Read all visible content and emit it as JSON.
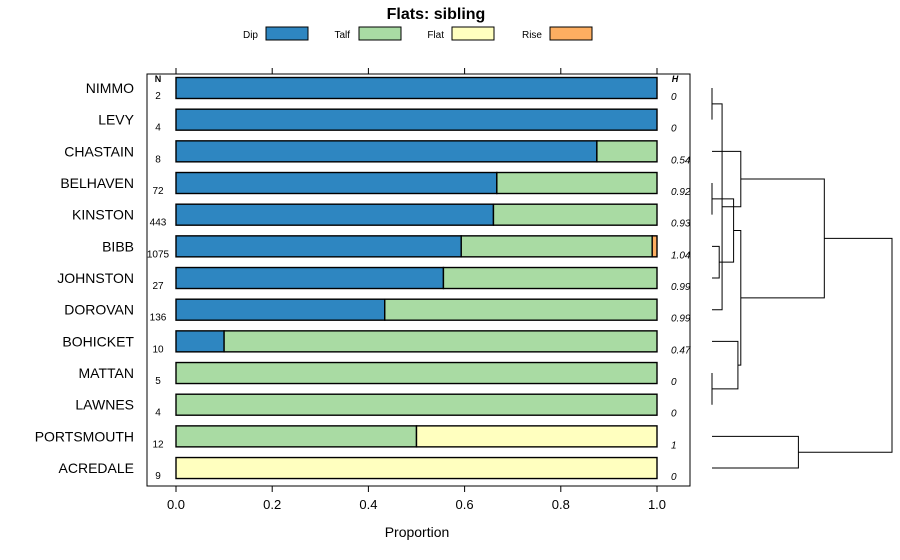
{
  "chart_data": {
    "type": "bar",
    "stacked": true,
    "orientation": "horizontal",
    "title": "Flats: sibling",
    "xlabel": "Proportion",
    "xlim": [
      0,
      1
    ],
    "x_ticks": [
      "0.0",
      "0.2",
      "0.4",
      "0.6",
      "0.8",
      "1.0"
    ],
    "n_header": "N",
    "h_header": "H",
    "legend": [
      {
        "name": "Dip",
        "color": "#2e86c1"
      },
      {
        "name": "Talf",
        "color": "#a9dba3"
      },
      {
        "name": "Flat",
        "color": "#ffffbf"
      },
      {
        "name": "Rise",
        "color": "#fdae61"
      }
    ],
    "categories": [
      "NIMMO",
      "LEVY",
      "CHASTAIN",
      "BELHAVEN",
      "KINSTON",
      "BIBB",
      "JOHNSTON",
      "DOROVAN",
      "BOHICKET",
      "MATTAN",
      "LAWNES",
      "PORTSMOUTH",
      "ACREDALE"
    ],
    "n_values": [
      "2",
      "4",
      "8",
      "72",
      "443",
      "1075",
      "27",
      "136",
      "10",
      "5",
      "4",
      "12",
      "9"
    ],
    "h_values": [
      "0",
      "0",
      "0.54",
      "0.92",
      "0.93",
      "1.04",
      "0.99",
      "0.99",
      "0.47",
      "0",
      "0",
      "1",
      "0"
    ],
    "series": [
      {
        "name": "Dip",
        "values": [
          1.0,
          1.0,
          0.875,
          0.667,
          0.66,
          0.593,
          0.556,
          0.434,
          0.1,
          0.0,
          0.0,
          0.0,
          0.0
        ]
      },
      {
        "name": "Talf",
        "values": [
          0.0,
          0.0,
          0.125,
          0.333,
          0.34,
          0.397,
          0.444,
          0.566,
          0.9,
          1.0,
          1.0,
          0.5,
          0.0
        ]
      },
      {
        "name": "Flat",
        "values": [
          0.0,
          0.0,
          0.0,
          0.0,
          0.0,
          0.0,
          0.0,
          0.0,
          0.0,
          0.0,
          0.0,
          0.5,
          1.0
        ]
      },
      {
        "name": "Rise",
        "values": [
          0.0,
          0.0,
          0.0,
          0.0,
          0.0,
          0.01,
          0.0,
          0.0,
          0.0,
          0.0,
          0.0,
          0.0,
          0.0
        ]
      }
    ],
    "dendrogram": {
      "merges": [
        [
          0,
          1,
          0.0
        ],
        [
          3,
          4,
          0.0
        ],
        [
          5,
          6,
          0.05
        ],
        [
          9,
          10,
          0.0
        ],
        [
          13,
          7,
          0.07
        ],
        [
          14,
          15,
          0.15
        ],
        [
          16,
          8,
          0.18
        ],
        [
          2,
          17,
          0.2
        ],
        [
          18,
          19,
          0.2
        ],
        [
          11,
          12,
          0.6
        ],
        [
          20,
          21,
          0.78
        ],
        [
          23,
          22,
          1.25
        ]
      ],
      "max_height": 1.25
    }
  }
}
